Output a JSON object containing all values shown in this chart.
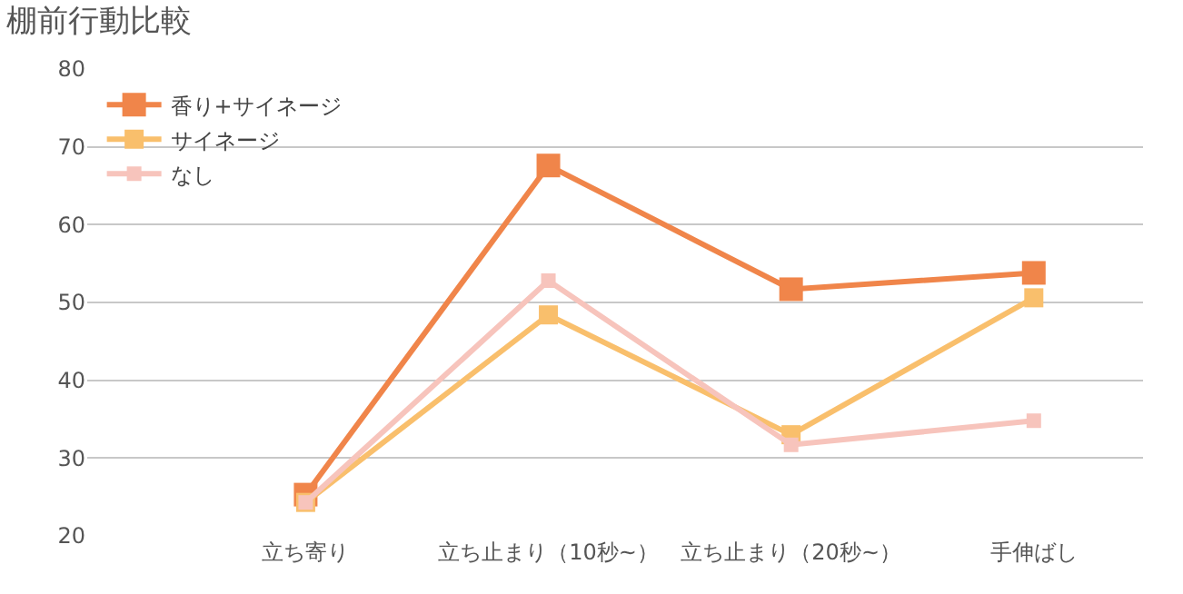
{
  "chart_data": {
    "type": "line",
    "title": "棚前行動比較",
    "categories": [
      "立ち寄り",
      "立ち止まり（10秒~）",
      "立ち止まり（20秒~）",
      "手伸ばし"
    ],
    "series": [
      {
        "name": "香り+サイネージ",
        "color": "#f0854a",
        "values": [
          25.3,
          67.6,
          51.7,
          53.8
        ]
      },
      {
        "name": "サイネージ",
        "color": "#f9bf6c",
        "values": [
          24.3,
          48.4,
          33.0,
          50.6
        ]
      },
      {
        "name": "なし",
        "color": "#f7c4bc",
        "values": [
          24.3,
          52.8,
          31.7,
          34.8
        ]
      }
    ],
    "ylim": [
      20,
      80
    ],
    "yticks": [
      20,
      30,
      40,
      50,
      60,
      70,
      80
    ],
    "grid": "y",
    "legend": "top left",
    "marker": "square",
    "line_style": "solid"
  }
}
